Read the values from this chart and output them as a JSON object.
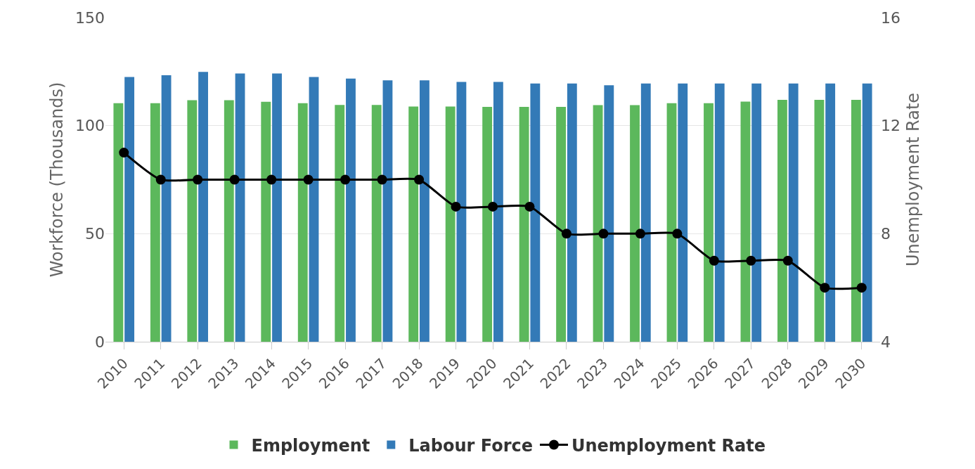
{
  "chart_data": {
    "type": "bar",
    "ylabel": "Workforce (Thousands)",
    "y2label": "Unemployment Rate",
    "categories": [
      "2010",
      "2011",
      "2012",
      "2013",
      "2014",
      "2015",
      "2016",
      "2017",
      "2018",
      "2019",
      "2020",
      "2021",
      "2022",
      "2023",
      "2024",
      "2025",
      "2026",
      "2027",
      "2028",
      "2029",
      "2030"
    ],
    "series": [
      {
        "name": "Employment",
        "color": "#5cb85c",
        "values": [
          110.4,
          110.4,
          111.8,
          111.8,
          111,
          110.4,
          109.6,
          109.6,
          108.8,
          108.8,
          108.7,
          108.7,
          108.7,
          109.5,
          109.5,
          110.4,
          110.4,
          111.1,
          111.9,
          111.9,
          111.9
        ]
      },
      {
        "name": "Labour Force",
        "color": "#337ab7",
        "values": [
          122.5,
          123.3,
          124.9,
          124.1,
          124.1,
          122.5,
          121.8,
          121,
          121,
          120.2,
          120.2,
          119.5,
          119.5,
          118.7,
          119.5,
          119.5,
          119.5,
          119.5,
          119.5,
          119.5,
          119.5
        ]
      },
      {
        "name": "Unemployment Rate",
        "type": "line",
        "axis": "y2",
        "color": "#000000",
        "marker": "circle",
        "values": [
          11,
          10,
          10,
          10,
          10,
          10,
          10,
          10,
          10,
          9,
          9,
          9,
          8,
          8,
          8,
          8,
          7,
          7,
          7,
          6,
          6
        ]
      }
    ],
    "ylim": [
      0,
      150
    ],
    "yticks": [
      0,
      50,
      100,
      150
    ],
    "y2lim": [
      4,
      16
    ],
    "y2ticks": [
      4,
      8,
      12,
      16
    ],
    "grid": "y",
    "legend": "bottom"
  }
}
